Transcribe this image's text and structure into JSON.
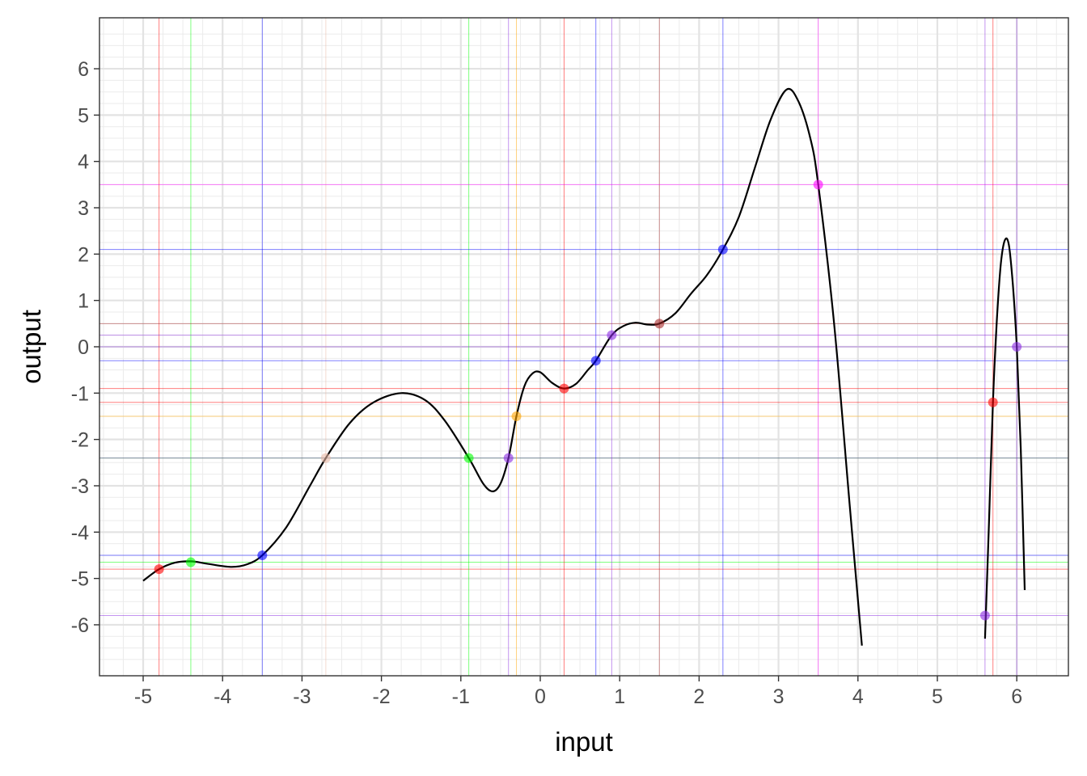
{
  "chart_data": {
    "type": "line",
    "xlabel": "input",
    "ylabel": "output",
    "xlim": [
      -5.55,
      6.65
    ],
    "ylim": [
      -7.1,
      7.1
    ],
    "x_ticks": [
      -5,
      -4,
      -3,
      -2,
      -1,
      0,
      1,
      2,
      3,
      4,
      5,
      6
    ],
    "y_ticks": [
      -6,
      -5,
      -4,
      -3,
      -2,
      -1,
      0,
      1,
      2,
      3,
      4,
      5,
      6
    ],
    "grid": true,
    "interpolating_curve": {
      "color": "#000000",
      "segments": [
        [
          [
            -5.0,
            -5.05
          ],
          [
            -4.8,
            -4.8
          ],
          [
            -4.6,
            -4.66
          ],
          [
            -4.4,
            -4.63
          ],
          [
            -4.2,
            -4.68
          ],
          [
            -3.9,
            -4.75
          ],
          [
            -3.7,
            -4.7
          ],
          [
            -3.5,
            -4.5
          ],
          [
            -3.2,
            -3.9
          ],
          [
            -2.9,
            -3.0
          ],
          [
            -2.7,
            -2.4
          ],
          [
            -2.4,
            -1.65
          ],
          [
            -2.1,
            -1.2
          ],
          [
            -1.75,
            -1.0
          ],
          [
            -1.45,
            -1.15
          ],
          [
            -1.2,
            -1.6
          ],
          [
            -0.9,
            -2.4
          ],
          [
            -0.72,
            -2.95
          ],
          [
            -0.6,
            -3.12
          ],
          [
            -0.5,
            -2.95
          ],
          [
            -0.4,
            -2.4
          ],
          [
            -0.3,
            -1.5
          ],
          [
            -0.2,
            -0.85
          ],
          [
            -0.1,
            -0.58
          ],
          [
            0.0,
            -0.55
          ],
          [
            0.15,
            -0.78
          ],
          [
            0.3,
            -0.9
          ],
          [
            0.45,
            -0.8
          ],
          [
            0.6,
            -0.5
          ],
          [
            0.7,
            -0.3
          ],
          [
            0.9,
            0.25
          ],
          [
            1.05,
            0.45
          ],
          [
            1.2,
            0.52
          ],
          [
            1.35,
            0.48
          ],
          [
            1.5,
            0.5
          ],
          [
            1.7,
            0.72
          ],
          [
            1.9,
            1.15
          ],
          [
            2.1,
            1.55
          ],
          [
            2.3,
            2.1
          ],
          [
            2.5,
            2.8
          ],
          [
            2.7,
            3.85
          ],
          [
            2.9,
            4.9
          ],
          [
            3.1,
            5.55
          ],
          [
            3.25,
            5.3
          ],
          [
            3.4,
            4.5
          ],
          [
            3.5,
            3.5
          ],
          [
            3.7,
            0.5
          ],
          [
            3.9,
            -3.5
          ],
          [
            4.05,
            -6.45
          ]
        ],
        [
          [
            5.6,
            -6.3
          ],
          [
            5.65,
            -3.8
          ],
          [
            5.7,
            -1.2
          ],
          [
            5.75,
            0.6
          ],
          [
            5.8,
            1.8
          ],
          [
            5.85,
            2.3
          ],
          [
            5.9,
            2.2
          ],
          [
            5.95,
            1.35
          ],
          [
            6.0,
            0.0
          ],
          [
            6.05,
            -2.2
          ],
          [
            6.1,
            -5.25
          ]
        ]
      ]
    },
    "points": [
      {
        "x": -4.8,
        "y": -4.8,
        "color": "#ff0000"
      },
      {
        "x": -4.4,
        "y": -4.65,
        "color": "#00ff00"
      },
      {
        "x": -3.5,
        "y": -4.5,
        "color": "#0000ff"
      },
      {
        "x": -2.7,
        "y": -2.4,
        "color": "#e7b8a5"
      },
      {
        "x": -0.9,
        "y": -2.4,
        "color": "#00ff00"
      },
      {
        "x": -0.4,
        "y": -2.4,
        "color": "#8a2be2"
      },
      {
        "x": -0.3,
        "y": -1.5,
        "color": "#ffa500"
      },
      {
        "x": 0.3,
        "y": -0.9,
        "color": "#ff0000"
      },
      {
        "x": 0.7,
        "y": -0.3,
        "color": "#0000ff"
      },
      {
        "x": 0.9,
        "y": 0.25,
        "color": "#8a2be2"
      },
      {
        "x": 1.5,
        "y": 0.5,
        "color": "#a52a2a"
      },
      {
        "x": 2.3,
        "y": 2.1,
        "color": "#0000ff"
      },
      {
        "x": 3.5,
        "y": 3.5,
        "color": "#ff00ff"
      },
      {
        "x": 5.6,
        "y": -5.8,
        "color": "#8a2be2"
      },
      {
        "x": 5.7,
        "y": -1.2,
        "color": "#ff0000"
      },
      {
        "x": 6.0,
        "y": 0.0,
        "color": "#8a2be2"
      }
    ]
  }
}
